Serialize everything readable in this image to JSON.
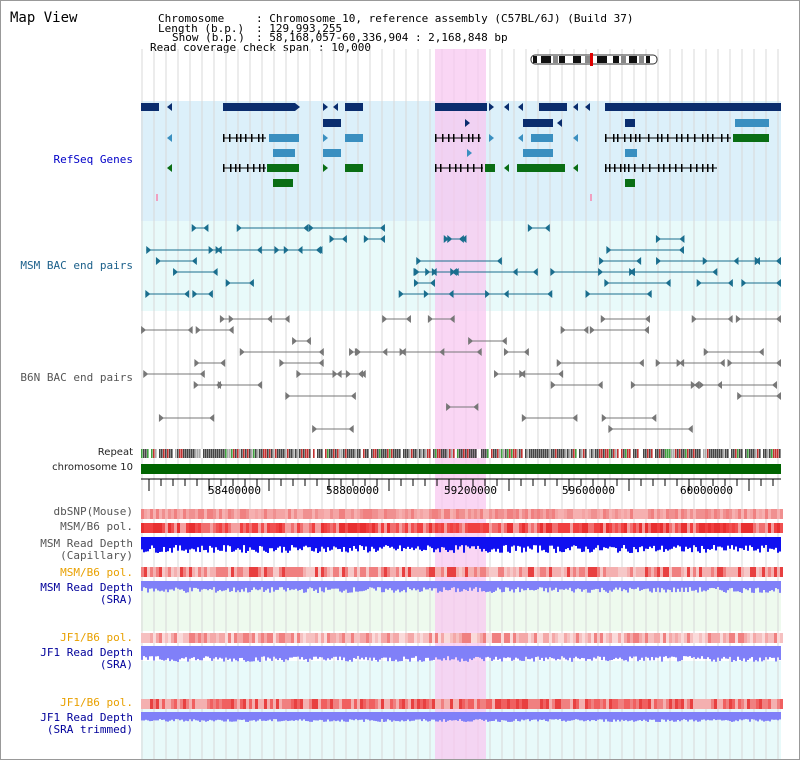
{
  "view_title": "Map View",
  "header": {
    "chromosome_key": "Chromosome",
    "chromosome_val": ": Chromosome 10, reference assembly (C57BL/6J) (Build 37)",
    "length_key": "Length (b.p.)",
    "length_val": ": 129,993,255",
    "show_key": "Show (b.p.)",
    "show_val": ": 58,168,057-60,336,904 : 2,168,848 bp",
    "coverage_key": "Read coverage check span",
    "coverage_val": ": 10,000"
  },
  "tracks": {
    "refseq": "RefSeq Genes",
    "msm_bac": "MSM BAC end pairs",
    "b6n_bac": "B6N BAC end pairs",
    "repeat": "Repeat",
    "chromosome": "chromosome 10",
    "dbsnp": "dbSNP(Mouse)",
    "msm_b6_pol_1": "MSM/B6 pol.",
    "msm_read_depth_cap_1": "MSM Read Depth",
    "msm_read_depth_cap_2": "(Capillary)",
    "msm_b6_pol_2": "MSM/B6 pol.",
    "msm_read_depth_sra_1": "MSM Read Depth",
    "msm_read_depth_sra_2": "(SRA)",
    "jf1_b6_pol_1": "JF1/B6 pol.",
    "jf1_read_depth_sra_1": "JF1 Read Depth",
    "jf1_read_depth_sra_2": "(SRA)",
    "jf1_b6_pol_2": "JF1/B6 pol.",
    "jf1_read_depth_trim_1": "JF1 Read Depth",
    "jf1_read_depth_trim_2": "(SRA trimmed)"
  },
  "axis_ticks": [
    "58400000",
    "58800000",
    "59200000",
    "59600000",
    "60000000"
  ],
  "colors": {
    "refseq_dark": "#0a2d6e",
    "refseq_light": "#3a8fc0",
    "refseq_green": "#0a6e14",
    "highlight": "#f8c8f0",
    "msm_bg": "#e8fafa",
    "chromosome_green": "#006400",
    "depth_blue": "#1010f0",
    "depth_lilac": "#8080f8"
  }
}
